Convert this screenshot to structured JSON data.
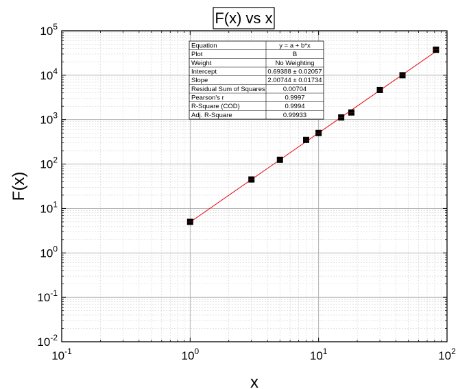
{
  "chart_data": {
    "type": "scatter",
    "title": "F(x) vs x",
    "xlabel": "x",
    "ylabel": "F(x)",
    "xscale": "log",
    "yscale": "log",
    "xlim": [
      0.1,
      100
    ],
    "ylim": [
      0.01,
      100000
    ],
    "x_ticks": [
      {
        "base": "10",
        "exp": "-1"
      },
      {
        "base": "10",
        "exp": "0"
      },
      {
        "base": "10",
        "exp": "1"
      },
      {
        "base": "10",
        "exp": "2"
      }
    ],
    "y_ticks": [
      {
        "base": "10",
        "exp": "-2"
      },
      {
        "base": "10",
        "exp": "-1"
      },
      {
        "base": "10",
        "exp": "0"
      },
      {
        "base": "10",
        "exp": "1"
      },
      {
        "base": "10",
        "exp": "2"
      },
      {
        "base": "10",
        "exp": "3"
      },
      {
        "base": "10",
        "exp": "4"
      },
      {
        "base": "10",
        "exp": "5"
      }
    ],
    "grid": true,
    "marker_color": "#000000",
    "fit_line_color": "#e8141c",
    "series": [
      {
        "x": [
          1,
          3,
          5,
          8,
          10,
          15,
          18,
          30,
          45,
          82
        ],
        "y": [
          5,
          45,
          125,
          350,
          500,
          1125,
          1450,
          4650,
          10000,
          37500
        ]
      }
    ],
    "fit": {
      "intercept": 0.69388,
      "slope": 2.00744,
      "x_range": [
        1,
        82
      ]
    },
    "stats_table": [
      {
        "label": "Equation",
        "value": "y = a + b*x"
      },
      {
        "label": "Plot",
        "value": "B"
      },
      {
        "label": "Weight",
        "value": "No Weighting"
      },
      {
        "label": "Intercept",
        "value": "0.69388 ± 0.02057"
      },
      {
        "label": "Slope",
        "value": "2.00744 ± 0.01734"
      },
      {
        "label": "Residual Sum of Squares",
        "value": "0.00704"
      },
      {
        "label": "Pearson's r",
        "value": "0.9997"
      },
      {
        "label": "R-Square (COD)",
        "value": "0.9994"
      },
      {
        "label": "Adj. R-Square",
        "value": "0.99933"
      }
    ]
  }
}
